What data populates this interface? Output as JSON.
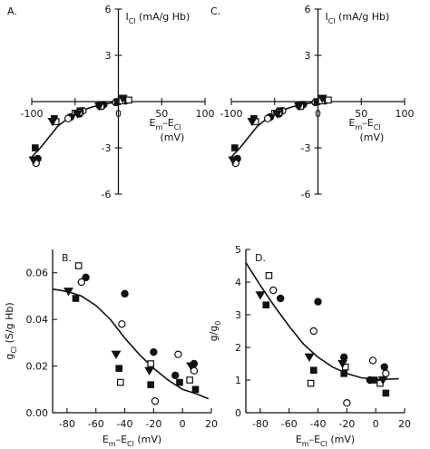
{
  "chart_data": [
    {
      "id": "A",
      "panel_label": "A.",
      "type": "scatter",
      "ylabel": {
        "main": "I",
        "sub": "Cl",
        "rest": "  (mA/g Hb)"
      },
      "xlabel": {
        "line1_main": "E",
        "line1_sub1": "m",
        "line1_mid": "–E",
        "line1_sub2": "Cl",
        "line2": "(mV)"
      },
      "xlim": [
        -100,
        100
      ],
      "ylim": [
        -6,
        6
      ],
      "x_ticks": [
        -100,
        -50,
        0,
        50,
        100
      ],
      "x_tick_labels": [
        "-100",
        "-50",
        "0",
        "50",
        "100"
      ],
      "y_ticks": [
        -6,
        -3,
        3,
        6
      ],
      "y_tick_labels": [
        "-6",
        "-3",
        "3",
        "6"
      ],
      "series": [
        {
          "marker": "filled-circle",
          "points": [
            [
              -93,
              -3.7
            ],
            [
              -55,
              -1.0
            ],
            [
              -45,
              -0.8
            ],
            [
              -22,
              -0.25
            ],
            [
              -17,
              -0.2
            ],
            [
              -3,
              -0.05
            ],
            [
              8,
              0.05
            ]
          ]
        },
        {
          "marker": "open-circle",
          "points": [
            [
              -95,
              -4.0
            ],
            [
              -58,
              -1.1
            ],
            [
              -41,
              -0.6
            ],
            [
              -20,
              -0.3
            ],
            [
              -3,
              -0.05
            ],
            [
              6,
              0.1
            ]
          ]
        },
        {
          "marker": "filled-square",
          "points": [
            [
              -96,
              -3.0
            ],
            [
              -74,
              -1.1
            ],
            [
              -44,
              -0.6
            ],
            [
              -21,
              -0.2
            ],
            [
              -1,
              0.0
            ],
            [
              9,
              0.1
            ]
          ]
        },
        {
          "marker": "open-square",
          "points": [
            [
              -72,
              -1.3
            ],
            [
              -45,
              -0.7
            ],
            [
              -20,
              -0.3
            ],
            [
              4,
              0.05
            ],
            [
              12,
              0.1
            ]
          ]
        },
        {
          "marker": "filled-triangle",
          "points": [
            [
              -98,
              -3.8
            ],
            [
              -76,
              -1.3
            ],
            [
              -47,
              -0.8
            ],
            [
              -22,
              -0.3
            ],
            [
              5,
              0.2
            ]
          ]
        }
      ],
      "fit_curve": [
        [
          -100,
          -3.6
        ],
        [
          -90,
          -3.0
        ],
        [
          -80,
          -2.3
        ],
        [
          -70,
          -1.6
        ],
        [
          -60,
          -1.15
        ],
        [
          -50,
          -0.8
        ],
        [
          -40,
          -0.55
        ],
        [
          -30,
          -0.35
        ],
        [
          -20,
          -0.22
        ],
        [
          -10,
          -0.1
        ],
        [
          0,
          0.0
        ],
        [
          10,
          0.1
        ]
      ]
    },
    {
      "id": "C",
      "panel_label": "C.",
      "type": "scatter",
      "ylabel": {
        "main": "I",
        "sub": "Cl",
        "rest": "  (mA/g Hb)"
      },
      "xlabel": {
        "line1_main": "E",
        "line1_sub1": "m",
        "line1_mid": "–E",
        "line1_sub2": "Cl",
        "line2": "(mV)"
      },
      "xlim": [
        -100,
        100
      ],
      "ylim": [
        -6,
        6
      ],
      "x_ticks": [
        -100,
        -50,
        0,
        50,
        100
      ],
      "x_tick_labels": [
        "-100",
        "-50",
        "0",
        "50",
        "100"
      ],
      "y_ticks": [
        -6,
        -3,
        3,
        6
      ],
      "y_tick_labels": [
        "-6",
        "-3",
        "3",
        "6"
      ],
      "series": [
        {
          "marker": "filled-circle",
          "points": [
            [
              -93,
              -3.7
            ],
            [
              -55,
              -1.0
            ],
            [
              -45,
              -0.8
            ],
            [
              -22,
              -0.25
            ],
            [
              -17,
              -0.2
            ],
            [
              -3,
              -0.05
            ],
            [
              8,
              0.05
            ]
          ]
        },
        {
          "marker": "open-circle",
          "points": [
            [
              -95,
              -4.0
            ],
            [
              -58,
              -1.1
            ],
            [
              -41,
              -0.6
            ],
            [
              -20,
              -0.3
            ],
            [
              -3,
              -0.05
            ],
            [
              6,
              0.1
            ]
          ]
        },
        {
          "marker": "filled-square",
          "points": [
            [
              -96,
              -3.0
            ],
            [
              -74,
              -1.1
            ],
            [
              -44,
              -0.6
            ],
            [
              -21,
              -0.2
            ],
            [
              -1,
              0.0
            ],
            [
              9,
              0.1
            ]
          ]
        },
        {
          "marker": "open-square",
          "points": [
            [
              -72,
              -1.3
            ],
            [
              -45,
              -0.7
            ],
            [
              -20,
              -0.3
            ],
            [
              4,
              0.05
            ],
            [
              12,
              0.1
            ]
          ]
        },
        {
          "marker": "filled-triangle",
          "points": [
            [
              -98,
              -3.8
            ],
            [
              -76,
              -1.3
            ],
            [
              -47,
              -0.8
            ],
            [
              -22,
              -0.3
            ],
            [
              5,
              0.2
            ]
          ]
        }
      ],
      "fit_curve": [
        [
          -100,
          -3.6
        ],
        [
          -90,
          -3.0
        ],
        [
          -80,
          -2.3
        ],
        [
          -70,
          -1.6
        ],
        [
          -60,
          -1.15
        ],
        [
          -50,
          -0.8
        ],
        [
          -40,
          -0.55
        ],
        [
          -30,
          -0.35
        ],
        [
          -20,
          -0.22
        ],
        [
          -10,
          -0.1
        ],
        [
          0,
          0.0
        ],
        [
          10,
          0.1
        ]
      ]
    },
    {
      "id": "B",
      "panel_label": "B.",
      "type": "scatter",
      "ylabel": {
        "main": "g",
        "sub": "Cl",
        "rest": " (S/g Hb)"
      },
      "xlabel": {
        "line1_main": "E",
        "line1_sub1": "m",
        "line1_mid": "–E",
        "line1_sub2": "Cl",
        "line2": " (mV)"
      },
      "xlim": [
        -90,
        20
      ],
      "ylim": [
        0,
        0.07
      ],
      "x_ticks": [
        -80,
        -60,
        -40,
        -20,
        0,
        20
      ],
      "x_tick_labels": [
        "-80",
        "-60",
        "-40",
        "-20",
        "0",
        "20"
      ],
      "y_ticks": [
        0.0,
        0.02,
        0.04,
        0.06
      ],
      "y_tick_labels": [
        "0.00",
        "0.02",
        "0.04",
        "0.06"
      ],
      "series": [
        {
          "marker": "filled-circle",
          "points": [
            [
              -67,
              0.058
            ],
            [
              -40,
              0.051
            ],
            [
              -20,
              0.026
            ],
            [
              -5,
              0.016
            ],
            [
              8,
              0.021
            ]
          ]
        },
        {
          "marker": "open-circle",
          "points": [
            [
              -70,
              0.056
            ],
            [
              -42,
              0.038
            ],
            [
              -19,
              0.005
            ],
            [
              -3,
              0.025
            ],
            [
              8,
              0.018
            ]
          ]
        },
        {
          "marker": "open-square",
          "points": [
            [
              -72,
              0.063
            ],
            [
              -43,
              0.013
            ],
            [
              -22,
              0.021
            ],
            [
              5,
              0.014
            ]
          ]
        },
        {
          "marker": "filled-square",
          "points": [
            [
              -74,
              0.049
            ],
            [
              -44,
              0.019
            ],
            [
              -22,
              0.012
            ],
            [
              -2,
              0.013
            ],
            [
              9,
              0.01
            ]
          ]
        },
        {
          "marker": "filled-triangle",
          "points": [
            [
              -79,
              0.052
            ],
            [
              -46,
              0.025
            ],
            [
              -23,
              0.018
            ],
            [
              6,
              0.02
            ]
          ]
        }
      ],
      "fit_curve": [
        [
          -90,
          0.053
        ],
        [
          -80,
          0.052
        ],
        [
          -70,
          0.05
        ],
        [
          -60,
          0.046
        ],
        [
          -50,
          0.04
        ],
        [
          -40,
          0.032
        ],
        [
          -30,
          0.025
        ],
        [
          -20,
          0.019
        ],
        [
          -10,
          0.014
        ],
        [
          0,
          0.01
        ],
        [
          10,
          0.008
        ],
        [
          18,
          0.006
        ]
      ]
    },
    {
      "id": "D",
      "panel_label": "D.",
      "type": "scatter",
      "ylabel": {
        "main": "g/g",
        "sub": "0",
        "rest": ""
      },
      "xlabel": {
        "line1_main": "E",
        "line1_sub1": "m",
        "line1_mid": "–E",
        "line1_sub2": "Cl",
        "line2": " (mV)"
      },
      "xlim": [
        -90,
        20
      ],
      "ylim": [
        0,
        5
      ],
      "x_ticks": [
        -80,
        -60,
        -40,
        -20,
        0,
        20
      ],
      "x_tick_labels": [
        "-80",
        "-60",
        "-40",
        "-20",
        "0",
        "20"
      ],
      "y_ticks": [
        0,
        1,
        2,
        3,
        4,
        5
      ],
      "y_tick_labels": [
        "0",
        "1",
        "2",
        "3",
        "4",
        "5"
      ],
      "series": [
        {
          "marker": "filled-circle",
          "points": [
            [
              -66,
              3.5
            ],
            [
              -40,
              3.4
            ],
            [
              -22,
              1.7
            ],
            [
              -4,
              1.0
            ],
            [
              6,
              1.4
            ]
          ]
        },
        {
          "marker": "open-circle",
          "points": [
            [
              -71,
              3.75
            ],
            [
              -43,
              2.5
            ],
            [
              -20,
              0.3
            ],
            [
              -2,
              1.6
            ],
            [
              7,
              1.2
            ]
          ]
        },
        {
          "marker": "open-square",
          "points": [
            [
              -74,
              4.2
            ],
            [
              -45,
              0.9
            ],
            [
              -21,
              1.4
            ],
            [
              3,
              0.9
            ]
          ]
        },
        {
          "marker": "filled-square",
          "points": [
            [
              -76,
              3.3
            ],
            [
              -43,
              1.3
            ],
            [
              -22,
              1.2
            ],
            [
              -1,
              1.0
            ],
            [
              7,
              0.6
            ]
          ]
        },
        {
          "marker": "filled-triangle",
          "points": [
            [
              -80,
              3.6
            ],
            [
              -46,
              1.7
            ],
            [
              -23,
              1.5
            ],
            [
              5,
              1.0
            ]
          ]
        }
      ],
      "fit_curve": [
        [
          -90,
          4.6
        ],
        [
          -80,
          3.9
        ],
        [
          -70,
          3.25
        ],
        [
          -60,
          2.65
        ],
        [
          -50,
          2.1
        ],
        [
          -40,
          1.7
        ],
        [
          -30,
          1.4
        ],
        [
          -20,
          1.2
        ],
        [
          -10,
          1.07
        ],
        [
          0,
          1.02
        ],
        [
          10,
          1.03
        ],
        [
          16,
          1.04
        ]
      ]
    }
  ]
}
